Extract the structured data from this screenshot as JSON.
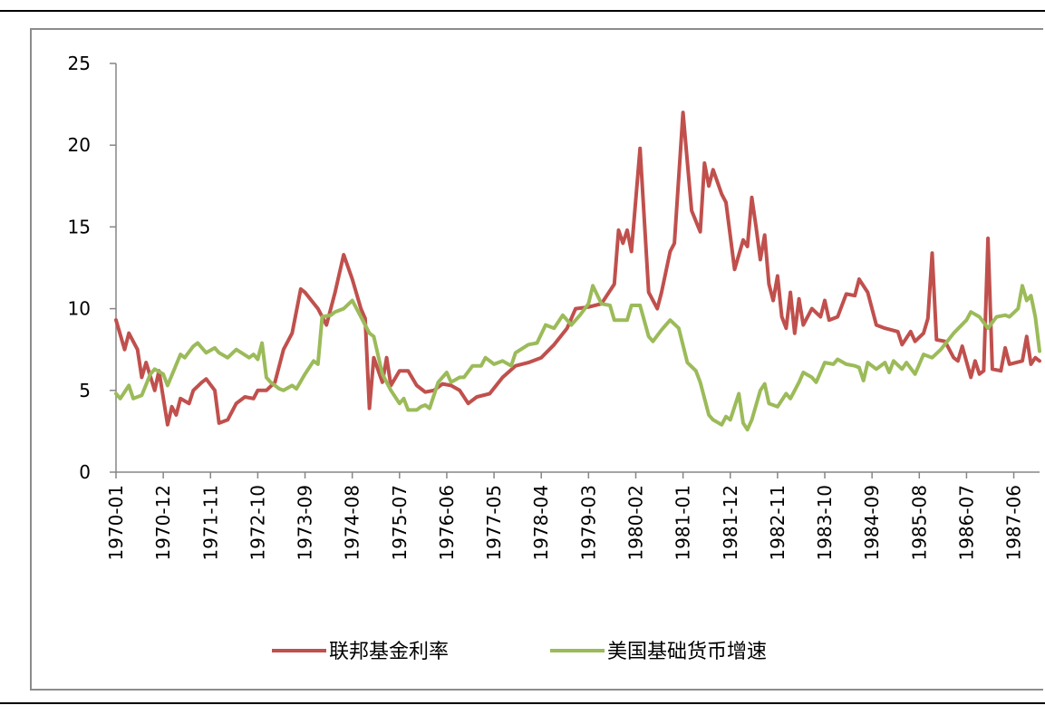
{
  "chart_data": {
    "type": "line",
    "title": "",
    "xlabel": "",
    "ylabel": "",
    "ylim": [
      0,
      25
    ],
    "yticks": [
      0,
      5,
      10,
      15,
      20,
      25
    ],
    "x_tick_labels": [
      "1970-01",
      "1970-12",
      "1971-11",
      "1972-10",
      "1973-09",
      "1974-08",
      "1975-07",
      "1976-06",
      "1977-05",
      "1978-04",
      "1979-03",
      "1980-02",
      "1981-01",
      "1981-12",
      "1982-11",
      "1983-10",
      "1984-09",
      "1985-08",
      "1986-07",
      "1987-06"
    ],
    "x_start": "1970-01",
    "x_end": "1987-12",
    "legend_position": "bottom",
    "grid": false,
    "series": [
      {
        "name": "联邦基金利率",
        "color": "#c0504d",
        "points": [
          [
            "1970-01",
            9.3
          ],
          [
            "1970-03",
            7.5
          ],
          [
            "1970-04",
            8.5
          ],
          [
            "1970-06",
            7.5
          ],
          [
            "1970-07",
            5.8
          ],
          [
            "1970-08",
            6.7
          ],
          [
            "1970-10",
            5.0
          ],
          [
            "1970-11",
            6.2
          ],
          [
            "1971-01",
            2.9
          ],
          [
            "1971-02",
            4.0
          ],
          [
            "1971-03",
            3.5
          ],
          [
            "1971-04",
            4.5
          ],
          [
            "1971-06",
            4.2
          ],
          [
            "1971-07",
            5.0
          ],
          [
            "1971-09",
            5.5
          ],
          [
            "1971-10",
            5.7
          ],
          [
            "1971-12",
            5.0
          ],
          [
            "1972-01",
            3.0
          ],
          [
            "1972-03",
            3.2
          ],
          [
            "1972-05",
            4.2
          ],
          [
            "1972-07",
            4.6
          ],
          [
            "1972-09",
            4.5
          ],
          [
            "1972-10",
            5.0
          ],
          [
            "1972-12",
            5.0
          ],
          [
            "1973-02",
            5.5
          ],
          [
            "1973-04",
            7.5
          ],
          [
            "1973-06",
            8.5
          ],
          [
            "1973-08",
            11.2
          ],
          [
            "1973-09",
            11.0
          ],
          [
            "1973-12",
            10.0
          ],
          [
            "1974-02",
            9.0
          ],
          [
            "1974-04",
            11.0
          ],
          [
            "1974-06",
            13.3
          ],
          [
            "1974-08",
            11.8
          ],
          [
            "1974-10",
            10.0
          ],
          [
            "1974-11",
            9.4
          ],
          [
            "1974-12",
            3.9
          ],
          [
            "1975-01",
            7.0
          ],
          [
            "1975-03",
            5.5
          ],
          [
            "1975-04",
            7.0
          ],
          [
            "1975-05",
            5.3
          ],
          [
            "1975-07",
            6.2
          ],
          [
            "1975-09",
            6.2
          ],
          [
            "1975-11",
            5.3
          ],
          [
            "1976-01",
            4.9
          ],
          [
            "1976-03",
            5.0
          ],
          [
            "1976-05",
            5.4
          ],
          [
            "1976-07",
            5.3
          ],
          [
            "1976-09",
            5.0
          ],
          [
            "1976-11",
            4.2
          ],
          [
            "1977-01",
            4.6
          ],
          [
            "1977-04",
            4.8
          ],
          [
            "1977-07",
            5.8
          ],
          [
            "1977-10",
            6.5
          ],
          [
            "1978-01",
            6.7
          ],
          [
            "1978-04",
            7.0
          ],
          [
            "1978-07",
            7.8
          ],
          [
            "1978-10",
            8.8
          ],
          [
            "1978-12",
            10.0
          ],
          [
            "1979-03",
            10.1
          ],
          [
            "1979-06",
            10.3
          ],
          [
            "1979-09",
            11.5
          ],
          [
            "1979-10",
            14.8
          ],
          [
            "1979-11",
            14.0
          ],
          [
            "1979-12",
            14.8
          ],
          [
            "1980-01",
            13.5
          ],
          [
            "1980-03",
            19.8
          ],
          [
            "1980-05",
            11.0
          ],
          [
            "1980-07",
            10.0
          ],
          [
            "1980-08",
            11.0
          ],
          [
            "1980-10",
            13.5
          ],
          [
            "1980-11",
            14.0
          ],
          [
            "1981-01",
            22.0
          ],
          [
            "1981-03",
            16.0
          ],
          [
            "1981-05",
            14.7
          ],
          [
            "1981-06",
            18.9
          ],
          [
            "1981-07",
            17.5
          ],
          [
            "1981-08",
            18.5
          ],
          [
            "1981-10",
            17.0
          ],
          [
            "1981-11",
            16.5
          ],
          [
            "1982-01",
            12.4
          ],
          [
            "1982-03",
            14.2
          ],
          [
            "1982-04",
            13.8
          ],
          [
            "1982-05",
            16.8
          ],
          [
            "1982-06",
            15.0
          ],
          [
            "1982-07",
            13.0
          ],
          [
            "1982-08",
            14.5
          ],
          [
            "1982-09",
            11.5
          ],
          [
            "1982-10",
            10.5
          ],
          [
            "1982-11",
            12.0
          ],
          [
            "1982-12",
            9.5
          ],
          [
            "1983-01",
            8.8
          ],
          [
            "1983-02",
            11.0
          ],
          [
            "1983-03",
            8.5
          ],
          [
            "1983-04",
            10.6
          ],
          [
            "1983-05",
            9.0
          ],
          [
            "1983-07",
            10.0
          ],
          [
            "1983-09",
            9.5
          ],
          [
            "1983-10",
            10.5
          ],
          [
            "1983-11",
            9.3
          ],
          [
            "1984-01",
            9.5
          ],
          [
            "1984-03",
            10.9
          ],
          [
            "1984-05",
            10.8
          ],
          [
            "1984-06",
            11.8
          ],
          [
            "1984-08",
            11.0
          ],
          [
            "1984-10",
            9.0
          ],
          [
            "1984-12",
            8.8
          ],
          [
            "1985-03",
            8.6
          ],
          [
            "1985-04",
            7.8
          ],
          [
            "1985-06",
            8.6
          ],
          [
            "1985-07",
            8.0
          ],
          [
            "1985-09",
            8.5
          ],
          [
            "1985-10",
            9.4
          ],
          [
            "1985-11",
            13.4
          ],
          [
            "1985-12",
            8.1
          ],
          [
            "1986-02",
            8.0
          ],
          [
            "1986-04",
            7.0
          ],
          [
            "1986-05",
            6.8
          ],
          [
            "1986-06",
            7.7
          ],
          [
            "1986-08",
            5.8
          ],
          [
            "1986-09",
            6.8
          ],
          [
            "1986-10",
            6.0
          ],
          [
            "1986-11",
            6.2
          ],
          [
            "1986-12",
            14.3
          ],
          [
            "1987-01",
            6.3
          ],
          [
            "1987-03",
            6.2
          ],
          [
            "1987-04",
            7.6
          ],
          [
            "1987-05",
            6.6
          ],
          [
            "1987-08",
            6.8
          ],
          [
            "1987-09",
            8.3
          ],
          [
            "1987-10",
            6.6
          ],
          [
            "1987-11",
            7.0
          ],
          [
            "1987-12",
            6.8
          ]
        ]
      },
      {
        "name": "美国基础货币增速",
        "color": "#9bbb59",
        "points": [
          [
            "1970-01",
            4.8
          ],
          [
            "1970-02",
            4.5
          ],
          [
            "1970-04",
            5.3
          ],
          [
            "1970-05",
            4.5
          ],
          [
            "1970-07",
            4.7
          ],
          [
            "1970-09",
            6.0
          ],
          [
            "1970-10",
            6.3
          ],
          [
            "1970-12",
            6.0
          ],
          [
            "1971-01",
            5.3
          ],
          [
            "1971-04",
            7.2
          ],
          [
            "1971-05",
            7.0
          ],
          [
            "1971-07",
            7.7
          ],
          [
            "1971-08",
            7.9
          ],
          [
            "1971-10",
            7.3
          ],
          [
            "1971-12",
            7.6
          ],
          [
            "1972-01",
            7.3
          ],
          [
            "1972-03",
            7.0
          ],
          [
            "1972-05",
            7.5
          ],
          [
            "1972-08",
            7.0
          ],
          [
            "1972-09",
            7.2
          ],
          [
            "1972-10",
            6.9
          ],
          [
            "1972-11",
            7.9
          ],
          [
            "1972-12",
            5.8
          ],
          [
            "1973-01",
            5.5
          ],
          [
            "1973-03",
            5.1
          ],
          [
            "1973-04",
            5.0
          ],
          [
            "1973-06",
            5.3
          ],
          [
            "1973-07",
            5.1
          ],
          [
            "1973-09",
            6.0
          ],
          [
            "1973-11",
            6.8
          ],
          [
            "1973-12",
            6.6
          ],
          [
            "1974-01",
            9.5
          ],
          [
            "1974-03",
            9.6
          ],
          [
            "1974-04",
            9.8
          ],
          [
            "1974-06",
            10.0
          ],
          [
            "1974-08",
            10.5
          ],
          [
            "1974-10",
            9.5
          ],
          [
            "1974-12",
            8.5
          ],
          [
            "1975-01",
            8.3
          ],
          [
            "1975-03",
            6.0
          ],
          [
            "1975-05",
            5.0
          ],
          [
            "1975-07",
            4.2
          ],
          [
            "1975-08",
            4.5
          ],
          [
            "1975-09",
            3.8
          ],
          [
            "1975-11",
            3.8
          ],
          [
            "1975-12",
            4.0
          ],
          [
            "1976-01",
            4.1
          ],
          [
            "1976-02",
            3.9
          ],
          [
            "1976-04",
            5.5
          ],
          [
            "1976-06",
            6.1
          ],
          [
            "1976-07",
            5.5
          ],
          [
            "1976-09",
            5.8
          ],
          [
            "1976-10",
            5.8
          ],
          [
            "1976-12",
            6.5
          ],
          [
            "1977-02",
            6.5
          ],
          [
            "1977-03",
            7.0
          ],
          [
            "1977-05",
            6.6
          ],
          [
            "1977-07",
            6.8
          ],
          [
            "1977-09",
            6.5
          ],
          [
            "1977-10",
            7.3
          ],
          [
            "1978-01",
            7.8
          ],
          [
            "1978-03",
            7.9
          ],
          [
            "1978-05",
            9.0
          ],
          [
            "1978-07",
            8.8
          ],
          [
            "1978-09",
            9.6
          ],
          [
            "1978-11",
            9.0
          ],
          [
            "1979-01",
            9.6
          ],
          [
            "1979-03",
            10.3
          ],
          [
            "1979-04",
            11.4
          ],
          [
            "1979-06",
            10.3
          ],
          [
            "1979-08",
            10.2
          ],
          [
            "1979-09",
            9.3
          ],
          [
            "1979-12",
            9.3
          ],
          [
            "1980-01",
            10.2
          ],
          [
            "1980-03",
            10.2
          ],
          [
            "1980-05",
            8.3
          ],
          [
            "1980-06",
            8.0
          ],
          [
            "1980-08",
            8.7
          ],
          [
            "1980-10",
            9.3
          ],
          [
            "1980-12",
            8.8
          ],
          [
            "1981-02",
            6.7
          ],
          [
            "1981-04",
            6.2
          ],
          [
            "1981-05",
            5.5
          ],
          [
            "1981-07",
            3.5
          ],
          [
            "1981-08",
            3.2
          ],
          [
            "1981-10",
            2.9
          ],
          [
            "1981-11",
            3.4
          ],
          [
            "1981-12",
            3.2
          ],
          [
            "1982-02",
            4.8
          ],
          [
            "1982-03",
            3.0
          ],
          [
            "1982-04",
            2.6
          ],
          [
            "1982-05",
            3.2
          ],
          [
            "1982-07",
            5.0
          ],
          [
            "1982-08",
            5.4
          ],
          [
            "1982-09",
            4.2
          ],
          [
            "1982-11",
            4.0
          ],
          [
            "1983-01",
            4.8
          ],
          [
            "1983-02",
            4.5
          ],
          [
            "1983-04",
            5.5
          ],
          [
            "1983-05",
            6.1
          ],
          [
            "1983-07",
            5.8
          ],
          [
            "1983-08",
            5.5
          ],
          [
            "1983-10",
            6.7
          ],
          [
            "1983-12",
            6.6
          ],
          [
            "1984-01",
            6.9
          ],
          [
            "1984-03",
            6.6
          ],
          [
            "1984-05",
            6.5
          ],
          [
            "1984-06",
            6.4
          ],
          [
            "1984-07",
            5.6
          ],
          [
            "1984-08",
            6.7
          ],
          [
            "1984-10",
            6.3
          ],
          [
            "1984-12",
            6.7
          ],
          [
            "1985-01",
            6.1
          ],
          [
            "1985-02",
            6.8
          ],
          [
            "1985-04",
            6.3
          ],
          [
            "1985-05",
            6.7
          ],
          [
            "1985-07",
            6.0
          ],
          [
            "1985-09",
            7.2
          ],
          [
            "1985-11",
            7.0
          ],
          [
            "1986-01",
            7.5
          ],
          [
            "1986-04",
            8.5
          ],
          [
            "1986-07",
            9.3
          ],
          [
            "1986-08",
            9.8
          ],
          [
            "1986-10",
            9.5
          ],
          [
            "1986-12",
            8.8
          ],
          [
            "1987-02",
            9.5
          ],
          [
            "1987-04",
            9.6
          ],
          [
            "1987-05",
            9.5
          ],
          [
            "1987-07",
            10.0
          ],
          [
            "1987-08",
            11.4
          ],
          [
            "1987-09",
            10.5
          ],
          [
            "1987-10",
            10.8
          ],
          [
            "1987-11",
            9.5
          ],
          [
            "1987-12",
            7.4
          ]
        ]
      }
    ]
  }
}
